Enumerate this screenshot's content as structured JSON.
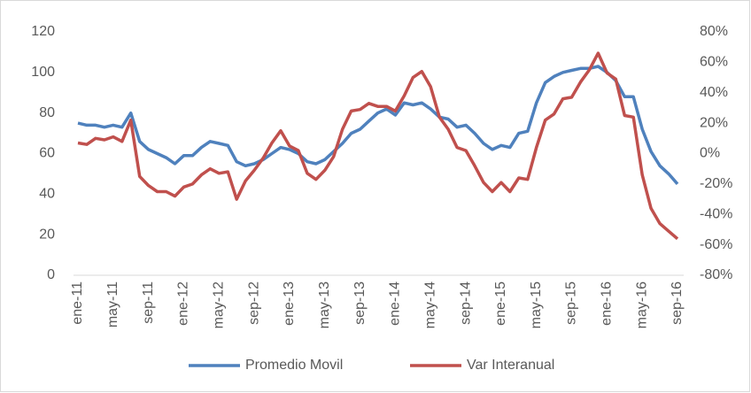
{
  "chart_data": {
    "type": "line",
    "categories": [
      "ene-11",
      null,
      null,
      null,
      "may-11",
      null,
      null,
      null,
      "sep-11",
      null,
      null,
      null,
      "ene-12",
      null,
      null,
      null,
      "may-12",
      null,
      null,
      null,
      "sep-12",
      null,
      null,
      null,
      "ene-13",
      null,
      null,
      null,
      "may-13",
      null,
      null,
      null,
      "sep-13",
      null,
      null,
      null,
      "ene-14",
      null,
      null,
      null,
      "may-14",
      null,
      null,
      null,
      "sep-14",
      null,
      null,
      null,
      "ene-15",
      null,
      null,
      null,
      "may-15",
      null,
      null,
      null,
      "sep-15",
      null,
      null,
      null,
      "ene-16",
      null,
      null,
      null,
      "may-16",
      null,
      null,
      null,
      "sep-16"
    ],
    "series": [
      {
        "name": "Promedio Movil",
        "color": "#4f81bd",
        "values": [
          75,
          74,
          74,
          73,
          74,
          73,
          80,
          66,
          62,
          60,
          58,
          55,
          59,
          59,
          63,
          66,
          65,
          64,
          56,
          54,
          55,
          57,
          60,
          63,
          62,
          60,
          56,
          55,
          57,
          61,
          65,
          70,
          72,
          76,
          80,
          82,
          79,
          85,
          84,
          85,
          82,
          78,
          77,
          73,
          74,
          70,
          65,
          62,
          64,
          63,
          70,
          71,
          85,
          95,
          98,
          100,
          101,
          102,
          102,
          103,
          100,
          96,
          88,
          88,
          72,
          61,
          54,
          50,
          45
        ]
      },
      {
        "name": "Var Interanual",
        "color": "#c0504d",
        "axis": "y2",
        "values": [
          7,
          6,
          10,
          9,
          11,
          8,
          22,
          -15,
          -21,
          -25,
          -25,
          -28,
          -22,
          -20,
          -14,
          -10,
          -13,
          -12,
          -30,
          -18,
          -11,
          -3,
          7,
          15,
          5,
          2,
          -13,
          -17,
          -11,
          -2,
          16,
          28,
          29,
          33,
          31,
          31,
          28,
          38,
          50,
          54,
          44,
          24,
          16,
          4,
          2,
          -8,
          -19,
          -25,
          -19,
          -25,
          -16,
          -17,
          4,
          22,
          26,
          36,
          37,
          47,
          55,
          66,
          53,
          49,
          25,
          24,
          -14,
          -36,
          -46,
          -51,
          -56
        ]
      }
    ],
    "ylim": [
      0,
      120
    ],
    "yticks": [
      0,
      20,
      40,
      60,
      80,
      100,
      120
    ],
    "y2lim": [
      -80,
      80
    ],
    "y2ticks": [
      {
        "value": -80,
        "label": "-80%"
      },
      {
        "value": -60,
        "label": "-60%"
      },
      {
        "value": -40,
        "label": "-40%"
      },
      {
        "value": -20,
        "label": "-20%"
      },
      {
        "value": 0,
        "label": "0%"
      },
      {
        "value": 20,
        "label": "20%"
      },
      {
        "value": 40,
        "label": "40%"
      },
      {
        "value": 60,
        "label": "60%"
      },
      {
        "value": 80,
        "label": "80%"
      }
    ],
    "legend": "bottom"
  }
}
